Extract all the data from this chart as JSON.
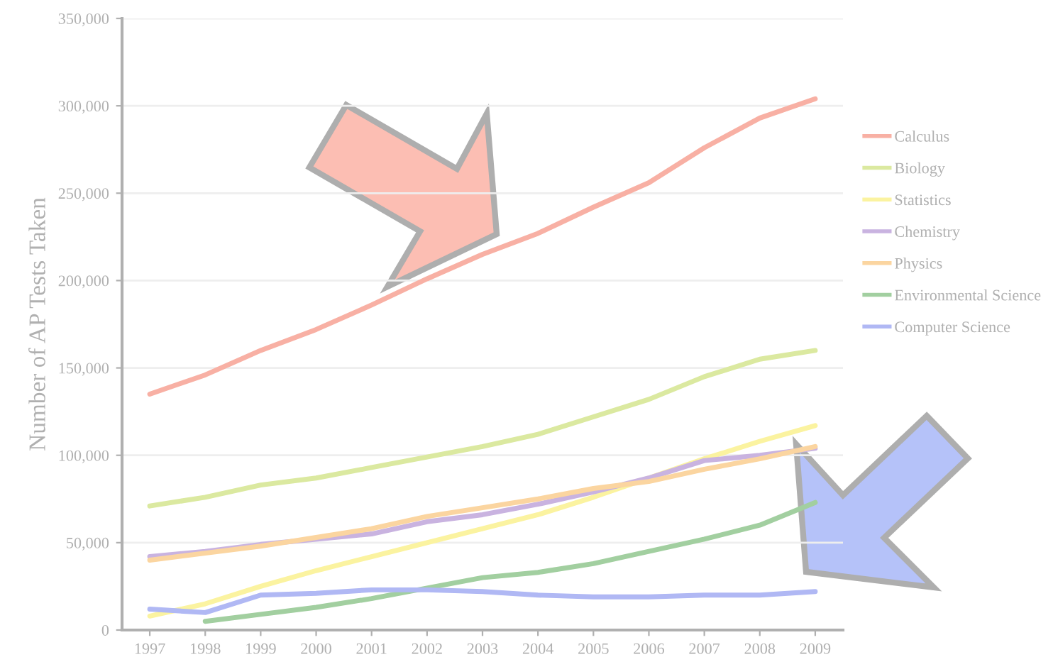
{
  "chart_data": {
    "type": "line",
    "ylabel": "Number of AP Tests Taken",
    "categories": [
      "1997",
      "1998",
      "1999",
      "2000",
      "2001",
      "2002",
      "2003",
      "2004",
      "2005",
      "2006",
      "2007",
      "2008",
      "2009"
    ],
    "series": [
      {
        "name": "Calculus",
        "color": "#f8b0a4",
        "values": [
          135000,
          146000,
          160000,
          172000,
          186000,
          201000,
          215000,
          227000,
          242000,
          256000,
          276000,
          293000,
          304000
        ]
      },
      {
        "name": "Biology",
        "color": "#dbe9a0",
        "values": [
          71000,
          76000,
          83000,
          87000,
          93000,
          99000,
          105000,
          112000,
          122000,
          132000,
          145000,
          155000,
          160000
        ]
      },
      {
        "name": "Statistics",
        "color": "#fbf3a0",
        "values": [
          8000,
          15000,
          25000,
          34000,
          42000,
          50000,
          58000,
          66000,
          76000,
          87000,
          98000,
          108000,
          117000
        ]
      },
      {
        "name": "Chemistry",
        "color": "#c9b3e0",
        "values": [
          42000,
          45000,
          49000,
          52000,
          55000,
          62000,
          66000,
          72000,
          79000,
          87000,
          97000,
          100000,
          104000
        ]
      },
      {
        "name": "Physics",
        "color": "#fbd5a0",
        "values": [
          40000,
          44000,
          48000,
          53000,
          58000,
          65000,
          70000,
          75000,
          81000,
          85000,
          92000,
          98000,
          105000
        ]
      },
      {
        "name": "Environmental Science",
        "color": "#a2cfa0",
        "values": [
          null,
          5000,
          9000,
          13000,
          18000,
          24000,
          30000,
          33000,
          38000,
          45000,
          52000,
          60000,
          73000
        ]
      },
      {
        "name": "Computer Science",
        "color": "#b0b8f4",
        "values": [
          12000,
          10000,
          20000,
          21000,
          23000,
          23000,
          22000,
          20000,
          19000,
          19000,
          20000,
          20000,
          22000
        ]
      }
    ],
    "ylim": [
      0,
      350000
    ],
    "yticks": [
      {
        "value": 0,
        "label": "0"
      },
      {
        "value": 50000,
        "label": "50,000"
      },
      {
        "value": 100000,
        "label": "100,000"
      },
      {
        "value": 150000,
        "label": "150,000"
      },
      {
        "value": 200000,
        "label": "200,000"
      },
      {
        "value": 250000,
        "label": "250,000"
      },
      {
        "value": 300000,
        "label": "300,000"
      },
      {
        "value": 350000,
        "label": "350,000"
      }
    ],
    "grid": "y",
    "legend": "right",
    "marker": "none",
    "line_style": "solid"
  }
}
